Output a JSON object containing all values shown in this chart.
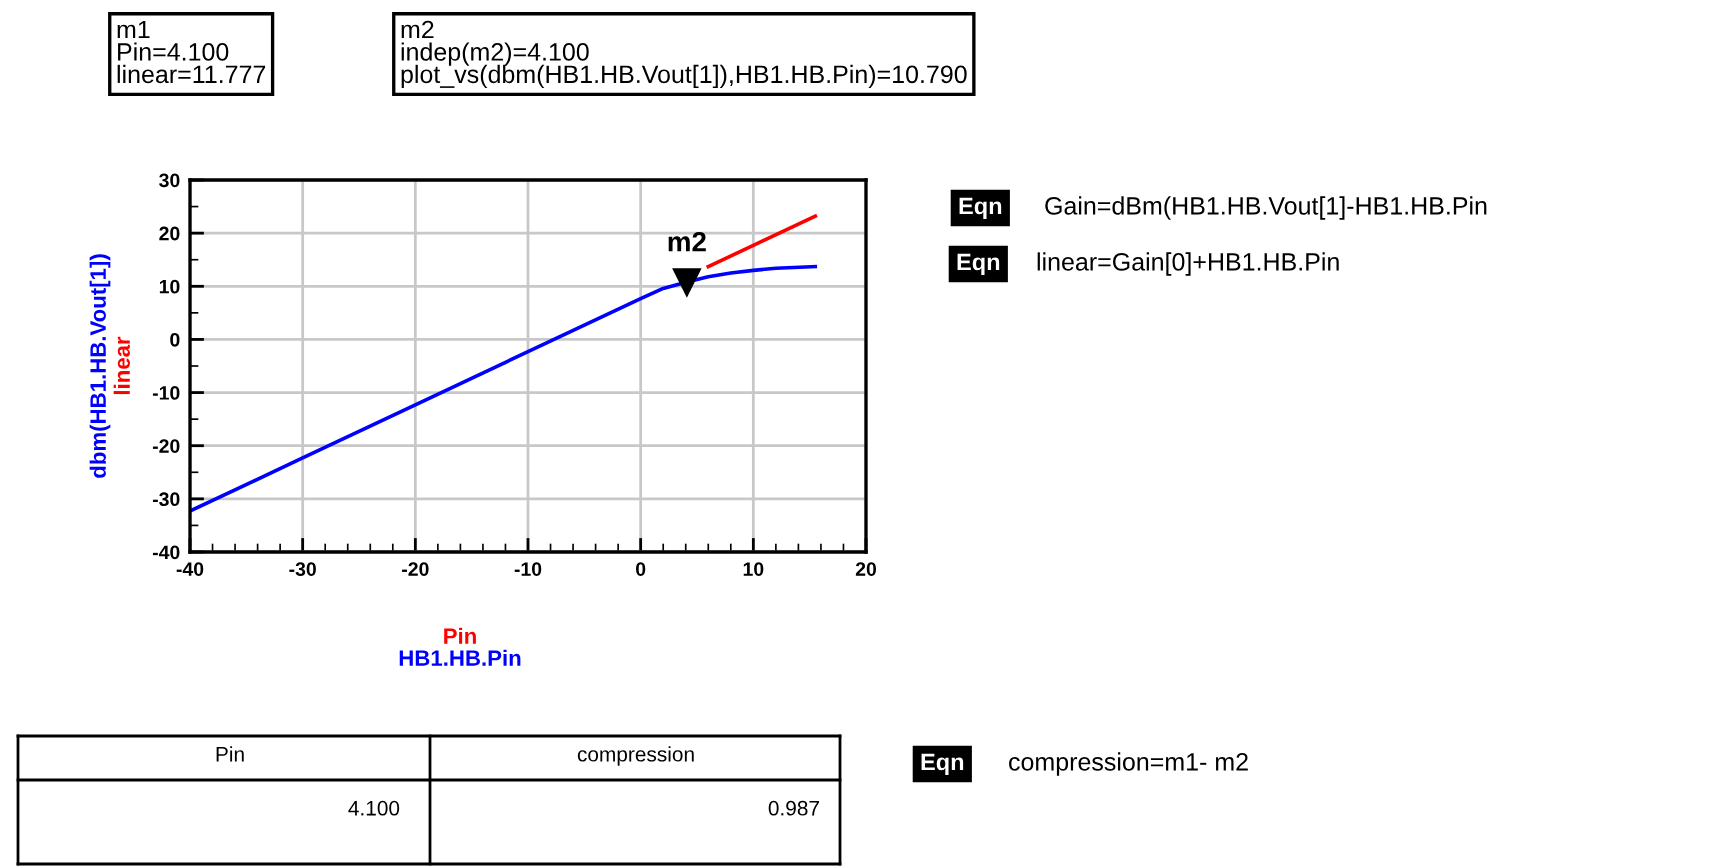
{
  "chart_data": {
    "type": "line",
    "x": [
      -40,
      -30,
      -20,
      -10,
      0,
      2,
      4.1,
      6,
      8,
      10,
      12,
      15.5
    ],
    "series": [
      {
        "name": "linear",
        "color": "#ff0000",
        "x": [
          6,
          10,
          15.5
        ],
        "values": [
          13.7,
          17.7,
          23.2
        ]
      },
      {
        "name": "dbm(HB1.HB.Vout[1])",
        "color": "#0000ff",
        "values": [
          -32.3,
          -22.3,
          -12.3,
          -2.3,
          7.7,
          9.6,
          10.8,
          11.8,
          12.5,
          13.0,
          13.4,
          13.7
        ]
      }
    ],
    "xlabel": "HB1.HB.Pin",
    "xlim": [
      -40,
      20
    ],
    "xticks": [
      -40,
      -30,
      -20,
      -10,
      0,
      10,
      20
    ],
    "ylim": [
      -40,
      30
    ],
    "yticks": [
      -40,
      -30,
      -20,
      -10,
      0,
      10,
      20,
      30
    ],
    "grid": true,
    "legend": false,
    "marker": "none",
    "line_style": "solid",
    "annotations": [
      "m1\nPin=4.100\nlinear=11.777",
      "m2\nindep(m2)=4.100\nplot_vs(dbm(HB1.HB.Vout[1]),HB1.HB.Pin)=10.790",
      "Eqn",
      "Gain=dBm(HB1.HB.Vout[1]-HB1.HB.Pin",
      "Eqn",
      "linear=Gain[0]+HB1.HB.Pin",
      "Pin",
      "Pin",
      "compression",
      "4.100",
      "0.987",
      "Eqn",
      "compression=m1- m2",
      {
        "text": "m2",
        "x": 4.1,
        "y": 10.79
      }
    ]
  }
}
